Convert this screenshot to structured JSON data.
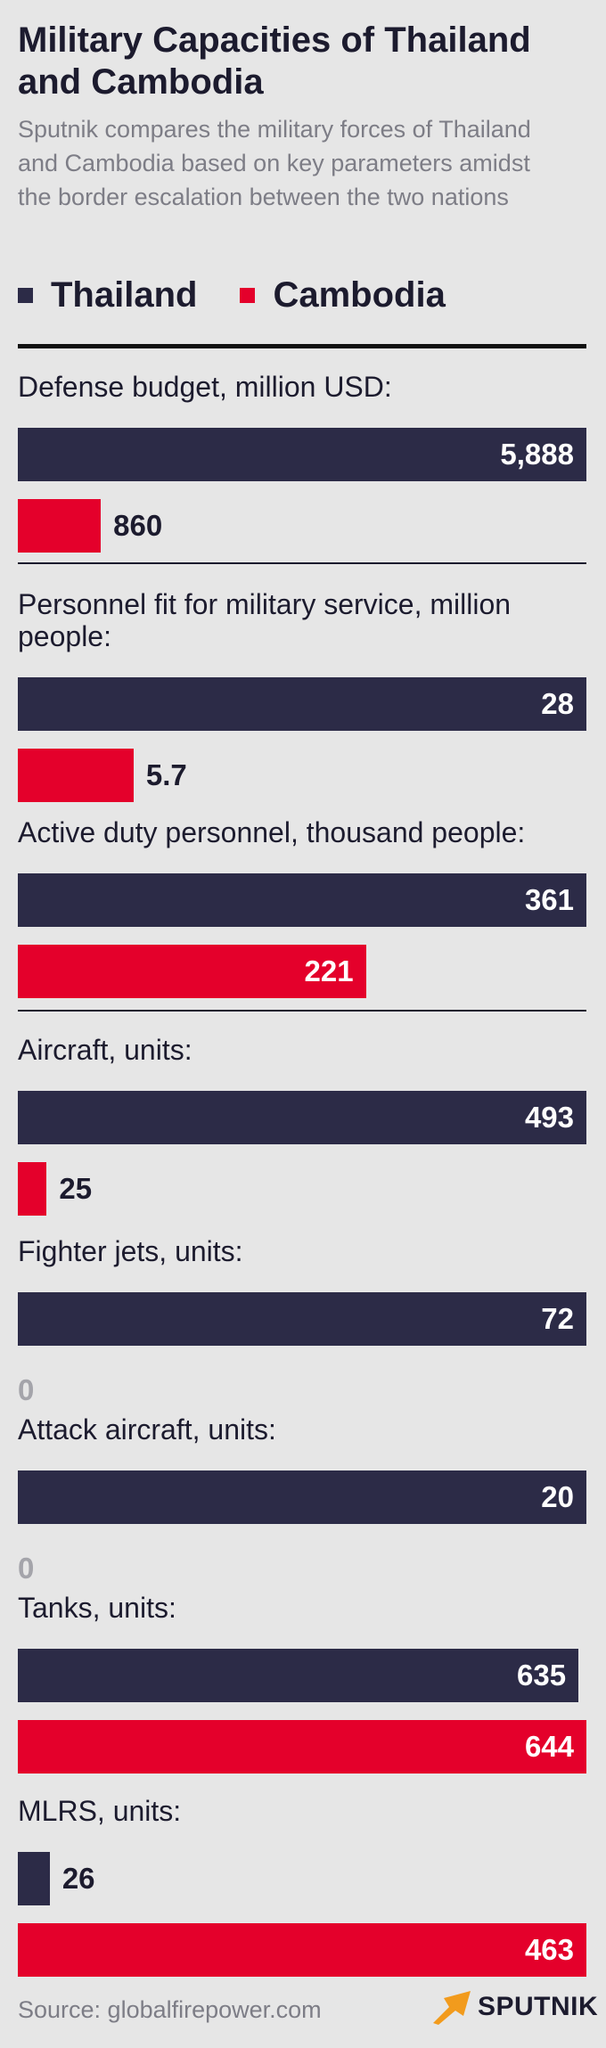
{
  "title": "Military Capacities of Thailand and Cambodia",
  "subtitle": "Sputnik compares the military forces of Thailand and Cambodia based on key parameters amidst the border escalation between the two nations",
  "colors": {
    "thailand": "#2c2b47",
    "cambodia": "#e4002b"
  },
  "legend": [
    {
      "name": "Thailand",
      "color": "#2c2b47"
    },
    {
      "name": "Cambodia",
      "color": "#e4002b"
    }
  ],
  "source": "Source: globalfirepower.com",
  "logo": {
    "text": "SPUTNIK",
    "icon": "sputnik-arrow-icon"
  },
  "chart_data": {
    "type": "bar",
    "orientation": "horizontal",
    "series_names": [
      "Thailand",
      "Cambodia"
    ],
    "groups": [
      {
        "label": "Defense budget, million USD:",
        "values": [
          5888,
          860
        ],
        "display": [
          "5,888",
          "860"
        ]
      },
      {
        "label": "Personnel fit for military service, million people:",
        "values": [
          28,
          5.7
        ],
        "display": [
          "28",
          "5.7"
        ]
      },
      {
        "label": "Active duty personnel, thousand people:",
        "values": [
          361,
          221
        ],
        "display": [
          "361",
          "221"
        ]
      },
      {
        "label": "Aircraft, units:",
        "values": [
          493,
          25
        ],
        "display": [
          "493",
          "25"
        ]
      },
      {
        "label": "Fighter jets, units:",
        "values": [
          72,
          0
        ],
        "display": [
          "72",
          "0"
        ]
      },
      {
        "label": "Attack aircraft, units:",
        "values": [
          20,
          0
        ],
        "display": [
          "20",
          "0"
        ]
      },
      {
        "label": "Tanks, units:",
        "values": [
          635,
          644
        ],
        "display": [
          "635",
          "644"
        ]
      },
      {
        "label": "MLRS, units:",
        "values": [
          26,
          463
        ],
        "display": [
          "26",
          "463"
        ]
      }
    ]
  }
}
